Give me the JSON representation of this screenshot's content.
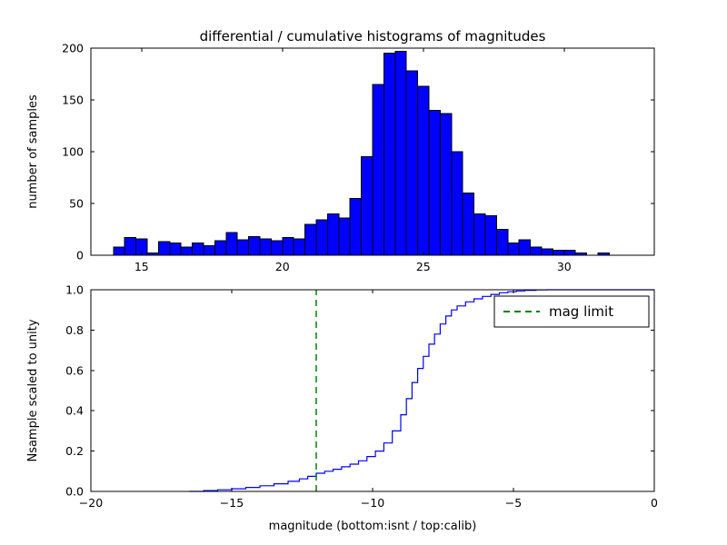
{
  "figure": {
    "background": "#ffffff",
    "title": "differential / cumulative histograms of magnitudes",
    "xlabel": "magnitude (bottom:isnt / top:calib)"
  },
  "chart_data": [
    {
      "type": "bar",
      "subplot": "top",
      "title": "differential / cumulative histograms of magnitudes",
      "xlabel": "",
      "ylabel": "number of samples",
      "xlim": [
        13.2,
        33.2
      ],
      "ylim": [
        0,
        200
      ],
      "grid": false,
      "bar_color": "#0000ff",
      "bar_edge_color": "#000000",
      "xticks": {
        "values": [
          15,
          20,
          25,
          30
        ],
        "labels": [
          "15",
          "20",
          "25",
          "30"
        ]
      },
      "yticks": {
        "values": [
          0,
          50,
          100,
          150,
          200
        ],
        "labels": [
          "0",
          "50",
          "100",
          "150",
          "200"
        ]
      },
      "bins": {
        "start": 14.0,
        "width": 0.4
      },
      "counts": [
        8,
        17,
        16,
        2,
        13,
        12,
        8,
        12,
        9,
        14,
        22,
        15,
        18,
        16,
        14,
        17,
        16,
        30,
        34,
        40,
        36,
        55,
        95,
        165,
        195,
        197,
        178,
        163,
        140,
        137,
        100,
        60,
        40,
        38,
        25,
        12,
        15,
        8,
        6,
        5,
        5,
        2,
        0,
        2,
        0,
        0,
        0,
        0
      ]
    },
    {
      "type": "line",
      "subplot": "bottom",
      "style": "step",
      "xlabel": "magnitude (bottom:isnt / top:calib)",
      "ylabel": "Nsample scaled to unity",
      "xlim": [
        -20,
        0
      ],
      "ylim": [
        0,
        1.0
      ],
      "grid": false,
      "line_color": "#0000ff",
      "xticks": {
        "values": [
          -20,
          -15,
          -10,
          -5,
          0
        ],
        "labels": [
          "−20",
          "−15",
          "−10",
          "−5",
          "0"
        ]
      },
      "yticks": {
        "values": [
          0,
          0.2,
          0.4,
          0.6,
          0.8,
          1.0
        ],
        "labels": [
          "0.0",
          "0.2",
          "0.4",
          "0.6",
          "0.8",
          "1.0"
        ]
      },
      "points": [
        [
          -16.5,
          0
        ],
        [
          -16.0,
          0.004
        ],
        [
          -15.5,
          0.008
        ],
        [
          -15.0,
          0.013
        ],
        [
          -14.5,
          0.02
        ],
        [
          -14.0,
          0.028
        ],
        [
          -13.5,
          0.038
        ],
        [
          -13.0,
          0.05
        ],
        [
          -12.6,
          0.062
        ],
        [
          -12.3,
          0.075
        ],
        [
          -12.0,
          0.09
        ],
        [
          -11.7,
          0.1
        ],
        [
          -11.4,
          0.11
        ],
        [
          -11.1,
          0.122
        ],
        [
          -10.8,
          0.135
        ],
        [
          -10.5,
          0.152
        ],
        [
          -10.2,
          0.173
        ],
        [
          -9.9,
          0.2
        ],
        [
          -9.6,
          0.24
        ],
        [
          -9.3,
          0.3
        ],
        [
          -9.0,
          0.38
        ],
        [
          -8.8,
          0.46
        ],
        [
          -8.6,
          0.54
        ],
        [
          -8.4,
          0.61
        ],
        [
          -8.2,
          0.67
        ],
        [
          -8.0,
          0.73
        ],
        [
          -7.8,
          0.78
        ],
        [
          -7.6,
          0.83
        ],
        [
          -7.4,
          0.87
        ],
        [
          -7.2,
          0.9
        ],
        [
          -7.0,
          0.92
        ],
        [
          -6.7,
          0.94
        ],
        [
          -6.4,
          0.955
        ],
        [
          -6.1,
          0.967
        ],
        [
          -5.8,
          0.977
        ],
        [
          -5.5,
          0.985
        ],
        [
          -5.2,
          0.99
        ],
        [
          -4.9,
          0.994
        ],
        [
          -4.6,
          0.997
        ],
        [
          -4.2,
          0.999
        ],
        [
          -3.8,
          1.0
        ],
        [
          0,
          1.0
        ]
      ],
      "mag_limit": {
        "x": -12,
        "color": "#008000",
        "linestyle": "dashed",
        "label": "mag limit"
      },
      "legend": {
        "position": "upper right",
        "entries": [
          {
            "label": "mag limit",
            "color": "#008000",
            "linestyle": "dashed"
          }
        ]
      }
    }
  ]
}
